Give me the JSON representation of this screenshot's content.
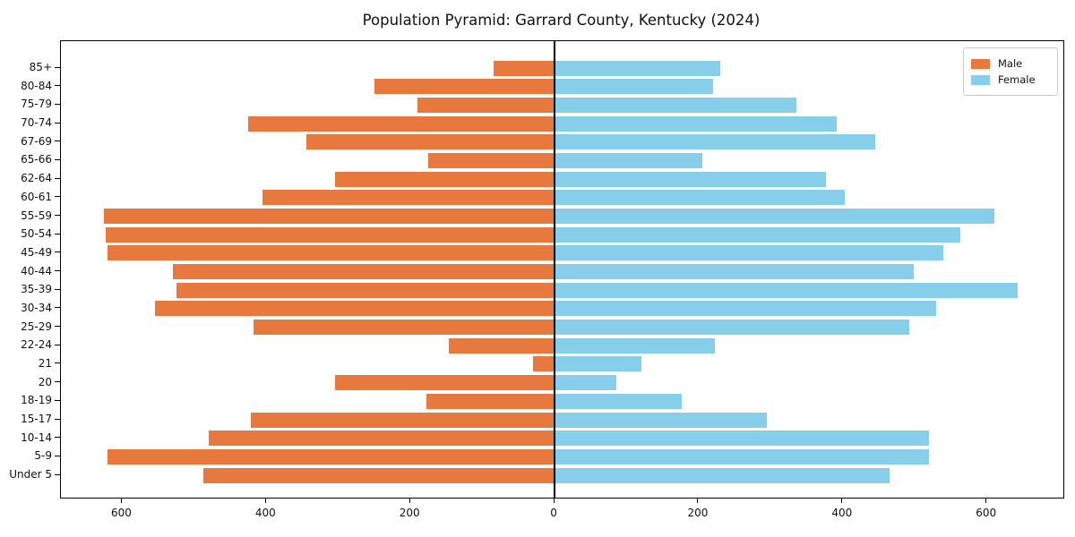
{
  "title": "Population Pyramid: Garrard County, Kentucky (2024)",
  "legend": {
    "male_label": "Male",
    "female_label": "Female"
  },
  "colors": {
    "male": "#E8793E",
    "female": "#87CEEB",
    "axis": "#000000"
  },
  "chart_data": {
    "type": "bar",
    "orientation": "horizontal-pyramid",
    "title": "Population Pyramid: Garrard County, Kentucky (2024)",
    "xlabel": "",
    "ylabel": "",
    "grid": false,
    "legend_position": "upper right",
    "note": "Male bars extend left of zero, Female bars extend right; categories listed top-to-bottom",
    "categories": [
      "85+",
      "80-84",
      "75-79",
      "70-74",
      "67-69",
      "65-66",
      "62-64",
      "60-61",
      "55-59",
      "50-54",
      "45-49",
      "40-44",
      "35-39",
      "30-34",
      "25-29",
      "22-24",
      "21",
      "20",
      "18-19",
      "15-17",
      "10-14",
      "5-9",
      "Under 5"
    ],
    "series": [
      {
        "name": "Male",
        "values": [
          85,
          250,
          190,
          425,
          345,
          175,
          305,
          405,
          625,
          623,
          620,
          530,
          525,
          555,
          418,
          147,
          30,
          305,
          178,
          421,
          480,
          620,
          488
        ]
      },
      {
        "name": "Female",
        "values": [
          230,
          220,
          335,
          392,
          445,
          205,
          377,
          403,
          610,
          563,
          540,
          498,
          643,
          530,
          492,
          222,
          120,
          86,
          176,
          295,
          520,
          520,
          465
        ]
      }
    ],
    "xlim": [
      -685,
      706
    ],
    "x_ticks": [
      -600,
      -400,
      -200,
      0,
      200,
      400,
      600
    ],
    "x_tick_labels": [
      "600",
      "400",
      "200",
      "0",
      "200",
      "400",
      "600"
    ]
  }
}
